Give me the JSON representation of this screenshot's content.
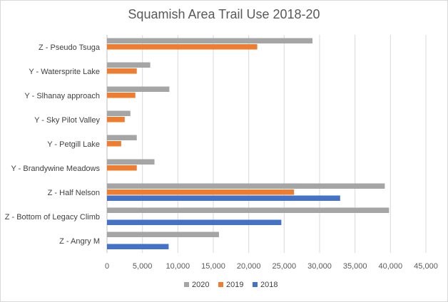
{
  "chart_data": {
    "type": "bar",
    "orientation": "horizontal",
    "title": "Squamish Area Trail Use 2018-20",
    "categories": [
      "Z - Pseudo Tsuga",
      "Y - Watersprite Lake",
      "Y - Slhanay approach",
      "Y - Sky Pilot Valley",
      "Y - Petgill Lake",
      "Y - Brandywine Meadows",
      "Z - Half Nelson",
      "Z - Bottom of Legacy Climb",
      "Z - Angry M"
    ],
    "series": [
      {
        "name": "2020",
        "color": "#a5a5a5",
        "values": [
          29000,
          6100,
          8800,
          3300,
          4200,
          6700,
          39200,
          39800,
          15800
        ]
      },
      {
        "name": "2019",
        "color": "#ed7d31",
        "values": [
          21200,
          4200,
          4000,
          2500,
          2000,
          4200,
          26400,
          null,
          null
        ]
      },
      {
        "name": "2018",
        "color": "#4472c4",
        "values": [
          null,
          null,
          null,
          null,
          null,
          null,
          32900,
          24600,
          8700
        ]
      }
    ],
    "xlim": [
      0,
      45000
    ],
    "xticks": [
      "0",
      "5,000",
      "10,000",
      "15,000",
      "20,000",
      "25,000",
      "30,000",
      "35,000",
      "40,000",
      "45,000"
    ],
    "grid": true,
    "legend": "bottom"
  }
}
